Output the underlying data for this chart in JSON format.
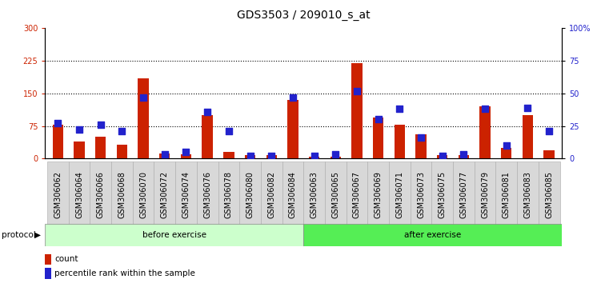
{
  "title": "GDS3503 / 209010_s_at",
  "samples": [
    "GSM306062",
    "GSM306064",
    "GSM306066",
    "GSM306068",
    "GSM306070",
    "GSM306072",
    "GSM306074",
    "GSM306076",
    "GSM306078",
    "GSM306080",
    "GSM306082",
    "GSM306084",
    "GSM306063",
    "GSM306065",
    "GSM306067",
    "GSM306069",
    "GSM306071",
    "GSM306073",
    "GSM306075",
    "GSM306077",
    "GSM306079",
    "GSM306081",
    "GSM306083",
    "GSM306085"
  ],
  "counts": [
    78,
    40,
    50,
    32,
    185,
    12,
    10,
    100,
    15,
    8,
    8,
    135,
    5,
    5,
    220,
    95,
    78,
    55,
    8,
    8,
    120,
    25,
    100,
    18
  ],
  "percentile": [
    27,
    22,
    26,
    21,
    47,
    3,
    5,
    36,
    21,
    2,
    2,
    47,
    2,
    3,
    52,
    30,
    38,
    16,
    2,
    3,
    38,
    10,
    39,
    21
  ],
  "before_count": 12,
  "after_count": 12,
  "before_label": "before exercise",
  "after_label": "after exercise",
  "protocol_label": "protocol",
  "bar_color": "#cc2200",
  "dot_color": "#2222cc",
  "ylim_left": [
    0,
    300
  ],
  "ylim_right": [
    0,
    100
  ],
  "yticks_left": [
    0,
    75,
    150,
    225,
    300
  ],
  "yticks_right": [
    0,
    25,
    50,
    75,
    100
  ],
  "ytick_labels_right": [
    "0",
    "25",
    "50",
    "75",
    "100%"
  ],
  "grid_lines": [
    75,
    150,
    225
  ],
  "before_color": "#ccffcc",
  "after_color": "#55ee55",
  "legend_count_label": "count",
  "legend_pct_label": "percentile rank within the sample",
  "bar_width": 0.5,
  "dot_size": 28,
  "title_fontsize": 10,
  "tick_fontsize": 7,
  "left_axis_color": "#cc2200",
  "right_axis_color": "#2222cc"
}
